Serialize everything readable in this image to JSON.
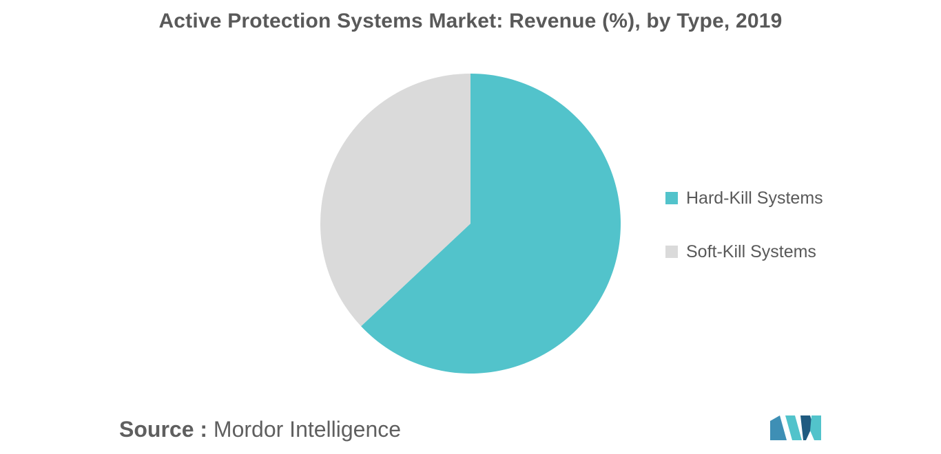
{
  "chart_data": {
    "type": "pie",
    "title": "Active Protection Systems Market: Revenue (%), by Type, 2019",
    "categories": [
      "Hard-Kill Systems",
      "Soft-Kill Systems"
    ],
    "values": [
      63,
      37
    ],
    "colors": [
      "#52C3CB",
      "#DADADA"
    ],
    "start_angle_deg": 0,
    "direction": "clockwise",
    "legend": "right"
  },
  "footer": {
    "source_label": "Source :",
    "source_value": "Mordor Intelligence",
    "logo_icon": "mordor-intelligence-logo-icon",
    "logo_colors": [
      "#3E8FB5",
      "#52C3CB",
      "#1F5B80"
    ]
  }
}
